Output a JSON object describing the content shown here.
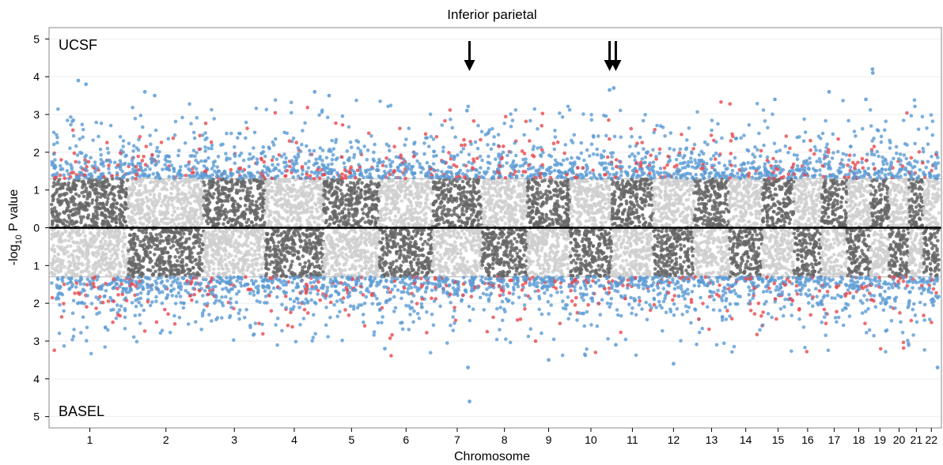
{
  "chart_data": {
    "type": "scatter",
    "title": "Inferior parietal",
    "xlabel": "Chromosome",
    "ylabel_prefix": "-log",
    "ylabel_subscript": "10",
    "ylabel_suffix": " P value",
    "panels": {
      "top": "UCSF",
      "bottom": "BASEL"
    },
    "categories": [
      "1",
      "2",
      "3",
      "4",
      "5",
      "6",
      "7",
      "8",
      "9",
      "10",
      "11",
      "12",
      "13",
      "14",
      "15",
      "16",
      "17",
      "18",
      "19",
      "20",
      "21",
      "22"
    ],
    "chromosome_relative_sizes": [
      1.0,
      0.98,
      0.8,
      0.76,
      0.73,
      0.69,
      0.64,
      0.59,
      0.56,
      0.54,
      0.54,
      0.53,
      0.46,
      0.43,
      0.41,
      0.36,
      0.33,
      0.31,
      0.24,
      0.26,
      0.19,
      0.2
    ],
    "y_tick_labels": [
      "5",
      "4",
      "3",
      "2",
      "1",
      "0",
      "1",
      "2",
      "3",
      "4",
      "5"
    ],
    "ylim": [
      -5.3,
      5.3
    ],
    "significance_threshold": 1.3,
    "grid": true,
    "colors": {
      "dark_chromosome": "#666666",
      "light_chromosome": "#cfcfcf",
      "suggestive": "#5b9bd5",
      "highlight": "#e8474c",
      "threshold_line": "#bbbbbb",
      "zero_line": "#000000",
      "grid": "#eeeeee",
      "panel_border": "#888888"
    },
    "arrows": [
      {
        "chromosome": "7",
        "position": 0.75
      },
      {
        "chromosome": "10",
        "position": 0.95
      },
      {
        "chromosome": "11",
        "position": 0.1
      }
    ],
    "top_hits": [
      {
        "panel": "top",
        "chromosome": "1",
        "position": 0.35,
        "value": 3.9
      },
      {
        "panel": "top",
        "chromosome": "1",
        "position": 0.45,
        "value": 3.8
      },
      {
        "panel": "top",
        "chromosome": "2",
        "position": 0.22,
        "value": 3.6
      },
      {
        "panel": "top",
        "chromosome": "2",
        "position": 0.35,
        "value": 3.5
      },
      {
        "panel": "top",
        "chromosome": "4",
        "position": 0.85,
        "value": 3.6
      },
      {
        "panel": "top",
        "chromosome": "5",
        "position": 0.1,
        "value": 3.5
      },
      {
        "panel": "top",
        "chromosome": "7",
        "position": 0.7,
        "value": 3.1
      },
      {
        "panel": "top",
        "chromosome": "10",
        "position": 0.95,
        "value": 3.65
      },
      {
        "panel": "top",
        "chromosome": "11",
        "position": 0.05,
        "value": 3.7
      },
      {
        "panel": "top",
        "chromosome": "15",
        "position": 0.4,
        "value": 3.4
      },
      {
        "panel": "top",
        "chromosome": "17",
        "position": 0.3,
        "value": 3.6
      },
      {
        "panel": "top",
        "chromosome": "18",
        "position": 0.8,
        "value": 3.4
      },
      {
        "panel": "top",
        "chromosome": "19",
        "position": 0.1,
        "value": 4.2
      },
      {
        "panel": "top",
        "chromosome": "19",
        "position": 0.12,
        "value": 4.1
      },
      {
        "panel": "bottom",
        "chromosome": "7",
        "position": 0.75,
        "value": 4.6
      },
      {
        "panel": "bottom",
        "chromosome": "7",
        "position": 0.72,
        "value": 3.7
      },
      {
        "panel": "bottom",
        "chromosome": "9",
        "position": 0.5,
        "value": 3.5
      },
      {
        "panel": "bottom",
        "chromosome": "22",
        "position": 0.9,
        "value": 3.7
      },
      {
        "panel": "bottom",
        "chromosome": "6",
        "position": 0.1,
        "value": 3.2
      },
      {
        "panel": "bottom",
        "chromosome": "11",
        "position": 0.1,
        "value": 3.1
      },
      {
        "panel": "bottom",
        "chromosome": "12",
        "position": 0.5,
        "value": 3.6
      }
    ]
  }
}
